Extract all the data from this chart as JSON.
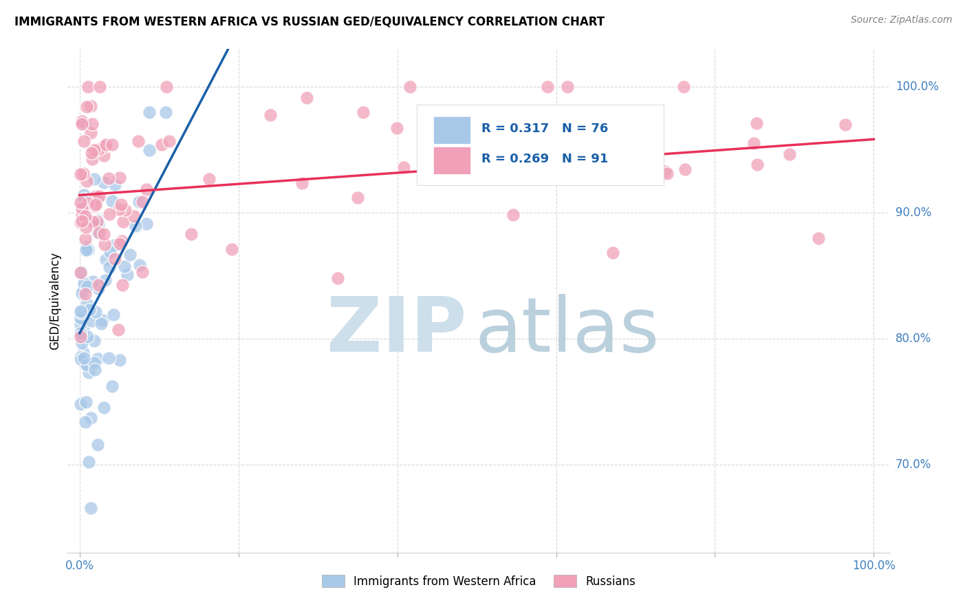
{
  "title": "IMMIGRANTS FROM WESTERN AFRICA VS RUSSIAN GED/EQUIVALENCY CORRELATION CHART",
  "source": "Source: ZipAtlas.com",
  "ylabel": "GED/Equivalency",
  "ytick_labels": [
    "70.0%",
    "80.0%",
    "90.0%",
    "100.0%"
  ],
  "ytick_values": [
    0.7,
    0.8,
    0.9,
    1.0
  ],
  "legend_blue_r": "0.317",
  "legend_blue_n": "76",
  "legend_pink_r": "0.269",
  "legend_pink_n": "91",
  "legend1_label": "Immigrants from Western Africa",
  "legend2_label": "Russians",
  "blue_color": "#a8c8e8",
  "pink_color": "#f0a0b8",
  "blue_line_color": "#1a5fa8",
  "pink_line_color": "#e8305a",
  "legend_text_color": "#1a5fa8",
  "tick_color": "#4080c0",
  "title_color": "#000000",
  "source_color": "#808080",
  "watermark_zip_color": "#c8dce8",
  "watermark_atlas_color": "#b0c8d8",
  "grid_color": "#d8d8d8",
  "xlim": [
    0.0,
    1.0
  ],
  "ylim": [
    0.63,
    1.03
  ]
}
